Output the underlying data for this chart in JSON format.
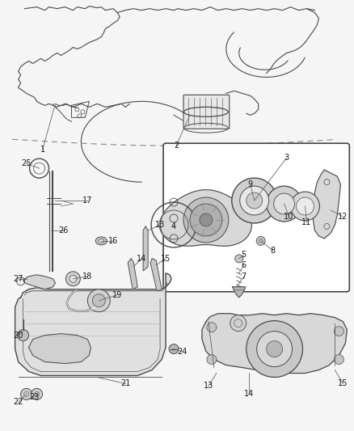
{
  "bg_color": "#f5f5f5",
  "fig_width": 4.39,
  "fig_height": 5.33,
  "dpi": 100,
  "line_color": "#4a4a4a",
  "label_color": "#1a1a1a",
  "font_size": 7.0,
  "leader_color": "#666666"
}
